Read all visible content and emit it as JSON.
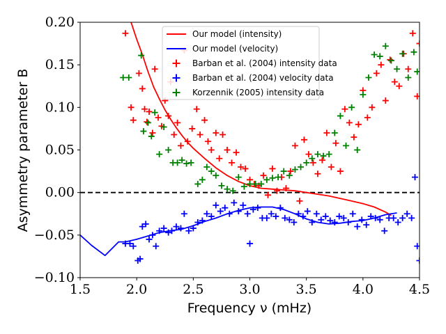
{
  "chart_data": {
    "type": "scatter",
    "xlabel": "Frequency ν (mHz)",
    "ylabel": "Asymmetry parameter B",
    "xlim": [
      1.5,
      4.5
    ],
    "ylim": [
      -0.1,
      0.2
    ],
    "xticks": [
      "1.5",
      "2.0",
      "2.5",
      "3.0",
      "3.5",
      "4.0",
      "4.5"
    ],
    "xtick_values": [
      1.5,
      2.0,
      2.5,
      3.0,
      3.5,
      4.0,
      4.5
    ],
    "yticks": [
      "−0.10",
      "−0.05",
      "0.00",
      "0.05",
      "0.10",
      "0.15",
      "0.20"
    ],
    "ytick_values": [
      -0.1,
      -0.05,
      0.0,
      0.05,
      0.1,
      0.15,
      0.2
    ],
    "reference_line": {
      "y": 0.0,
      "style": "dashed",
      "color": "#000000"
    },
    "legend_position": "top-center",
    "series": [
      {
        "name": "Our model (intensity)",
        "kind": "line",
        "color": "#ff0000",
        "x": [
          1.95,
          2.0,
          2.05,
          2.1,
          2.15,
          2.2,
          2.25,
          2.3,
          2.35,
          2.4,
          2.45,
          2.5,
          2.6,
          2.7,
          2.8,
          2.9,
          3.0,
          3.1,
          3.2,
          3.3,
          3.4,
          3.5,
          3.6,
          3.7,
          3.8,
          3.9,
          4.0,
          4.1,
          4.2,
          4.25
        ],
        "y": [
          0.2,
          0.18,
          0.162,
          0.142,
          0.124,
          0.11,
          0.097,
          0.086,
          0.076,
          0.067,
          0.059,
          0.052,
          0.04,
          0.029,
          0.02,
          0.013,
          0.008,
          0.005,
          0.004,
          0.003,
          0.002,
          0.0,
          -0.002,
          -0.004,
          -0.007,
          -0.01,
          -0.013,
          -0.017,
          -0.023,
          -0.027
        ]
      },
      {
        "name": "Our model (velocity)",
        "kind": "line",
        "color": "#0000ff",
        "x": [
          1.5,
          1.6,
          1.72,
          1.84,
          1.9,
          2.0,
          2.1,
          2.2,
          2.3,
          2.4,
          2.5,
          2.6,
          2.7,
          2.8,
          2.9,
          3.0,
          3.1,
          3.2,
          3.3,
          3.4,
          3.5,
          3.6,
          3.7,
          3.8,
          3.9,
          4.0,
          4.1,
          4.2,
          4.3
        ],
        "y": [
          -0.05,
          -0.062,
          -0.074,
          -0.058,
          -0.058,
          -0.055,
          -0.051,
          -0.047,
          -0.045,
          -0.043,
          -0.039,
          -0.034,
          -0.03,
          -0.025,
          -0.021,
          -0.018,
          -0.017,
          -0.017,
          -0.02,
          -0.025,
          -0.031,
          -0.035,
          -0.037,
          -0.036,
          -0.034,
          -0.033,
          -0.03,
          -0.026,
          -0.024
        ]
      },
      {
        "name": "Barban et al. (2004) intensity data",
        "kind": "markers",
        "color": "#ff0000",
        "x": [
          1.9,
          1.95,
          1.97,
          2.02,
          2.05,
          2.07,
          2.09,
          2.11,
          2.14,
          2.16,
          2.19,
          2.22,
          2.25,
          2.28,
          2.3,
          2.33,
          2.36,
          2.39,
          2.42,
          2.45,
          2.49,
          2.53,
          2.56,
          2.6,
          2.63,
          2.66,
          2.7,
          2.73,
          2.76,
          2.8,
          2.84,
          2.88,
          2.92,
          2.96,
          3.0,
          3.04,
          3.08,
          3.12,
          3.16,
          3.2,
          3.24,
          3.28,
          3.32,
          3.36,
          3.4,
          3.44,
          3.48,
          3.52,
          3.56,
          3.6,
          3.64,
          3.68,
          3.72,
          3.76,
          3.8,
          3.84,
          3.88,
          3.92,
          3.96,
          4.0,
          4.04,
          4.08,
          4.12,
          4.16,
          4.2,
          4.24,
          4.28,
          4.32,
          4.36,
          4.4,
          4.44,
          4.48,
          4.5
        ],
        "y": [
          0.187,
          0.1,
          0.085,
          0.14,
          0.122,
          0.098,
          0.083,
          0.095,
          0.07,
          0.145,
          0.088,
          0.078,
          0.108,
          0.09,
          0.13,
          0.068,
          0.082,
          0.055,
          0.167,
          0.06,
          0.075,
          0.098,
          0.068,
          0.085,
          0.06,
          0.05,
          0.07,
          0.04,
          0.068,
          0.05,
          0.035,
          0.047,
          0.03,
          0.028,
          0.015,
          0.01,
          0.008,
          0.02,
          -0.003,
          0.028,
          0.002,
          0.018,
          0.005,
          0.025,
          0.055,
          -0.01,
          0.062,
          0.045,
          0.035,
          0.022,
          0.038,
          0.07,
          0.03,
          0.058,
          0.025,
          0.098,
          0.082,
          0.065,
          0.08,
          0.12,
          0.088,
          0.1,
          0.14,
          0.15,
          0.108,
          0.156,
          0.13,
          0.125,
          0.163,
          0.145,
          0.187,
          0.113,
          0.175
        ]
      },
      {
        "name": "Barban et al. (2004) velocity data",
        "kind": "markers",
        "color": "#0000ff",
        "x": [
          1.9,
          1.94,
          1.97,
          2.01,
          2.03,
          2.05,
          2.08,
          2.11,
          2.14,
          2.17,
          2.2,
          2.24,
          2.28,
          2.31,
          2.35,
          2.39,
          2.42,
          2.46,
          2.5,
          2.54,
          2.58,
          2.62,
          2.66,
          2.7,
          2.74,
          2.78,
          2.82,
          2.86,
          2.9,
          2.94,
          2.98,
          3.0,
          3.03,
          3.07,
          3.11,
          3.15,
          3.19,
          3.23,
          3.27,
          3.31,
          3.35,
          3.39,
          3.43,
          3.47,
          3.51,
          3.55,
          3.59,
          3.63,
          3.67,
          3.71,
          3.75,
          3.79,
          3.83,
          3.87,
          3.91,
          3.95,
          3.99,
          4.03,
          4.07,
          4.11,
          4.15,
          4.19,
          4.23,
          4.27,
          4.31,
          4.35,
          4.39,
          4.43,
          4.46,
          4.48,
          4.5
        ],
        "y": [
          -0.06,
          -0.06,
          -0.063,
          -0.08,
          -0.078,
          -0.04,
          -0.037,
          -0.055,
          -0.05,
          -0.063,
          -0.045,
          -0.042,
          -0.047,
          -0.045,
          -0.04,
          -0.042,
          -0.025,
          -0.045,
          -0.042,
          -0.035,
          -0.033,
          -0.025,
          -0.028,
          -0.015,
          -0.022,
          -0.018,
          -0.025,
          -0.012,
          -0.022,
          -0.015,
          -0.025,
          -0.06,
          -0.02,
          -0.018,
          -0.03,
          -0.03,
          -0.025,
          -0.028,
          -0.018,
          -0.03,
          -0.032,
          -0.035,
          -0.025,
          -0.028,
          -0.022,
          -0.035,
          -0.025,
          -0.032,
          -0.028,
          -0.033,
          -0.035,
          -0.028,
          -0.03,
          -0.035,
          -0.025,
          -0.04,
          -0.032,
          -0.038,
          -0.028,
          -0.03,
          -0.032,
          -0.045,
          -0.03,
          -0.03,
          -0.035,
          -0.03,
          -0.025,
          -0.03,
          0.018,
          -0.063,
          -0.08
        ]
      },
      {
        "name": "Korzennik (2005) intensity data",
        "kind": "markers",
        "color": "#008000",
        "x": [
          1.88,
          1.93,
          2.04,
          2.06,
          2.1,
          2.13,
          2.16,
          2.2,
          2.24,
          2.28,
          2.32,
          2.36,
          2.4,
          2.44,
          2.48,
          2.54,
          2.58,
          2.62,
          2.66,
          2.7,
          2.75,
          2.8,
          2.85,
          2.9,
          2.95,
          3.0,
          3.05,
          3.1,
          3.15,
          3.2,
          3.25,
          3.3,
          3.35,
          3.4,
          3.45,
          3.5,
          3.55,
          3.6,
          3.65,
          3.7,
          3.75,
          3.8,
          3.85,
          3.9,
          3.95,
          4.0,
          4.05,
          4.1,
          4.15,
          4.2,
          4.25,
          4.3,
          4.35,
          4.4,
          4.45,
          4.48
        ],
        "y": [
          0.135,
          0.135,
          0.161,
          0.072,
          0.082,
          0.066,
          0.094,
          0.045,
          0.077,
          0.05,
          0.035,
          0.035,
          0.038,
          0.034,
          0.035,
          0.01,
          0.015,
          0.03,
          0.025,
          0.02,
          0.008,
          0.004,
          0.002,
          0.018,
          0.007,
          0.01,
          0.01,
          0.01,
          0.015,
          0.017,
          0.018,
          0.025,
          0.02,
          0.027,
          0.03,
          0.035,
          0.04,
          0.045,
          0.043,
          0.045,
          0.07,
          0.09,
          0.055,
          0.1,
          0.05,
          0.115,
          0.135,
          0.162,
          0.16,
          0.172,
          0.155,
          0.145,
          0.163,
          0.135,
          0.165,
          0.142
        ]
      }
    ]
  }
}
